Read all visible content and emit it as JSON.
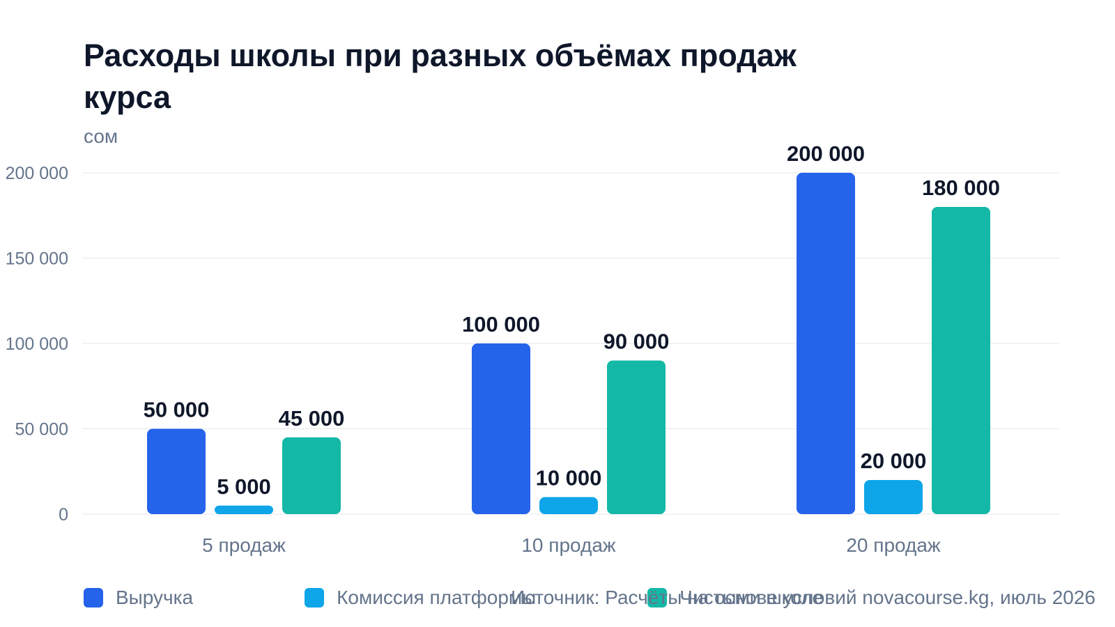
{
  "title": "Расходы школы при разных объёмах продаж курса",
  "y_unit": "сом",
  "source": "Источник: Расчёты на основе условий novacourse.kg, июль 2026",
  "colors": {
    "revenue": "#2563eb",
    "commission": "#0ea5e9",
    "net": "#14b8a6",
    "grid": "#e5e7eb",
    "axis_text": "#64748b",
    "label_text": "#0f172a"
  },
  "legend": [
    {
      "name": "Выручка",
      "color": "#2563eb"
    },
    {
      "name": "Комиссия платформы",
      "color": "#0ea5e9"
    },
    {
      "name": "Чистыми школе",
      "color": "#14b8a6"
    }
  ],
  "chart_data": {
    "type": "bar",
    "title": "Расходы школы при разных объёмах продаж курса",
    "ylabel": "сом",
    "categories": [
      "5 продаж",
      "10 продаж",
      "20 продаж"
    ],
    "series": [
      {
        "name": "Выручка",
        "values": [
          50000,
          100000,
          200000
        ]
      },
      {
        "name": "Комиссия платформы",
        "values": [
          5000,
          10000,
          20000
        ]
      },
      {
        "name": "Чистыми школе",
        "values": [
          45000,
          90000,
          180000
        ]
      }
    ],
    "data_labels": [
      [
        "50 000",
        "100 000",
        "200 000"
      ],
      [
        "5 000",
        "10 000",
        "20 000"
      ],
      [
        "45 000",
        "90 000",
        "180 000"
      ]
    ],
    "ylim": [
      0,
      200000
    ],
    "yticks": [
      0,
      50000,
      100000,
      150000,
      200000
    ],
    "ytick_labels": [
      "0",
      "50 000",
      "100 000",
      "150 000",
      "200 000"
    ],
    "grid": true,
    "legend_position": "bottom-left"
  }
}
